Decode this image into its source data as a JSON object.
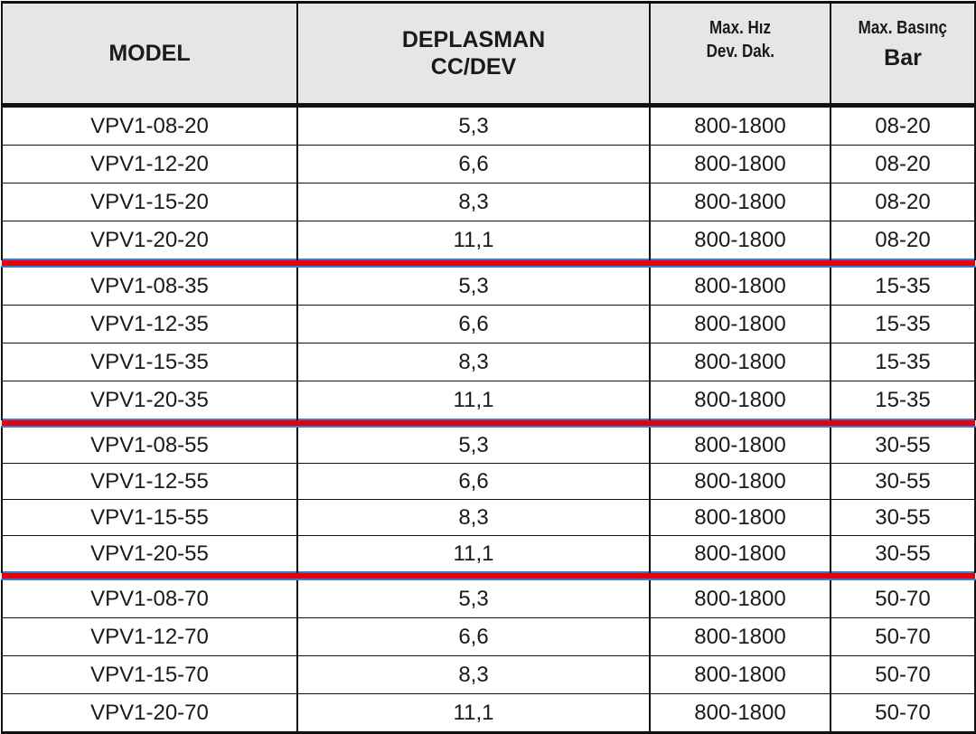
{
  "header": {
    "model": "MODEL",
    "deplasman_line1": "DEPLASMAN",
    "deplasman_line2": "CC/DEV",
    "speed_line1": "Max. Hız",
    "speed_line2": "Dev. Dak.",
    "pressure_line1": "Max. Basınç",
    "pressure_line2": "Bar"
  },
  "separator_color": "#e3000f",
  "groups": [
    {
      "rows": [
        [
          "VPV1-08-20",
          "5,3",
          "800-1800",
          "08-20"
        ],
        [
          "VPV1-12-20",
          "6,6",
          "800-1800",
          "08-20"
        ],
        [
          "VPV1-15-20",
          "8,3",
          "800-1800",
          "08-20"
        ],
        [
          "VPV1-20-20",
          "11,1",
          "800-1800",
          "08-20"
        ]
      ]
    },
    {
      "rows": [
        [
          "VPV1-08-35",
          "5,3",
          "800-1800",
          "15-35"
        ],
        [
          "VPV1-12-35",
          "6,6",
          "800-1800",
          "15-35"
        ],
        [
          "VPV1-15-35",
          "8,3",
          "800-1800",
          "15-35"
        ],
        [
          "VPV1-20-35",
          "11,1",
          "800-1800",
          "15-35"
        ]
      ]
    },
    {
      "rows": [
        [
          "VPV1-08-55",
          "5,3",
          "800-1800",
          "30-55"
        ],
        [
          "VPV1-12-55",
          "6,6",
          "800-1800",
          "30-55"
        ],
        [
          "VPV1-15-55",
          "8,3",
          "800-1800",
          "30-55"
        ],
        [
          "VPV1-20-55",
          "11,1",
          "800-1800",
          "30-55"
        ]
      ]
    },
    {
      "rows": [
        [
          "VPV1-08-70",
          "5,3",
          "800-1800",
          "50-70"
        ],
        [
          "VPV1-12-70",
          "6,6",
          "800-1800",
          "50-70"
        ],
        [
          "VPV1-15-70",
          "8,3",
          "800-1800",
          "50-70"
        ],
        [
          "VPV1-20-70",
          "11,1",
          "800-1800",
          "50-70"
        ]
      ]
    }
  ]
}
